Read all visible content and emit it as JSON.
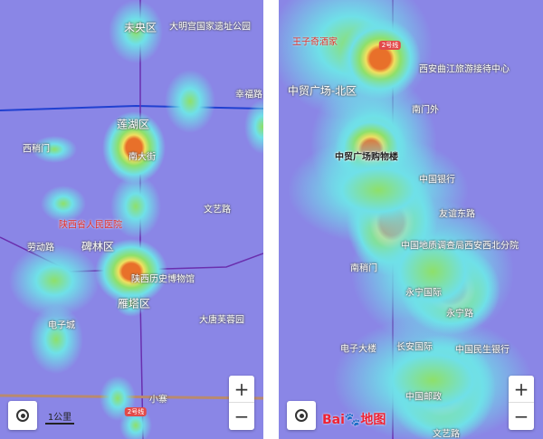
{
  "left_map": {
    "labels": [
      "未央区",
      "大明宫国家遗址公园",
      "幸福路",
      "莲湖区",
      "南大街",
      "西稍门",
      "文艺路",
      "陕西省人民医院",
      "劳动路",
      "碑林区",
      "陕西历史博物馆",
      "雁塔区",
      "电子城",
      "大唐芙蓉园",
      "小寨"
    ],
    "metro_badge": "2号线",
    "scale": "1公里",
    "zoom_in": "+",
    "zoom_out": "−"
  },
  "right_map": {
    "labels": [
      "中贸广场-北区",
      "王子奇酒家",
      "中贸广场购物楼",
      "南门外",
      "中国银行",
      "友谊东路",
      "西安曲江旅游接待中心",
      "南稍门",
      "永宁国际",
      "中国地质调查局西安西北分院",
      "永宁路",
      "中国民生银行",
      "电子大楼",
      "长安国际",
      "中国邮政",
      "文艺路"
    ],
    "metro_badge": "2号线",
    "logo": "Bai度地图",
    "zoom_in": "+",
    "zoom_out": "−"
  },
  "colors": {
    "base": "#8a86e6",
    "low": "#6fe0e8",
    "mid": "#8ee06a",
    "high": "#f0e060",
    "peak": "#e8702a",
    "metro_line": "#6a2fae",
    "road_blue": "#2040d0"
  }
}
